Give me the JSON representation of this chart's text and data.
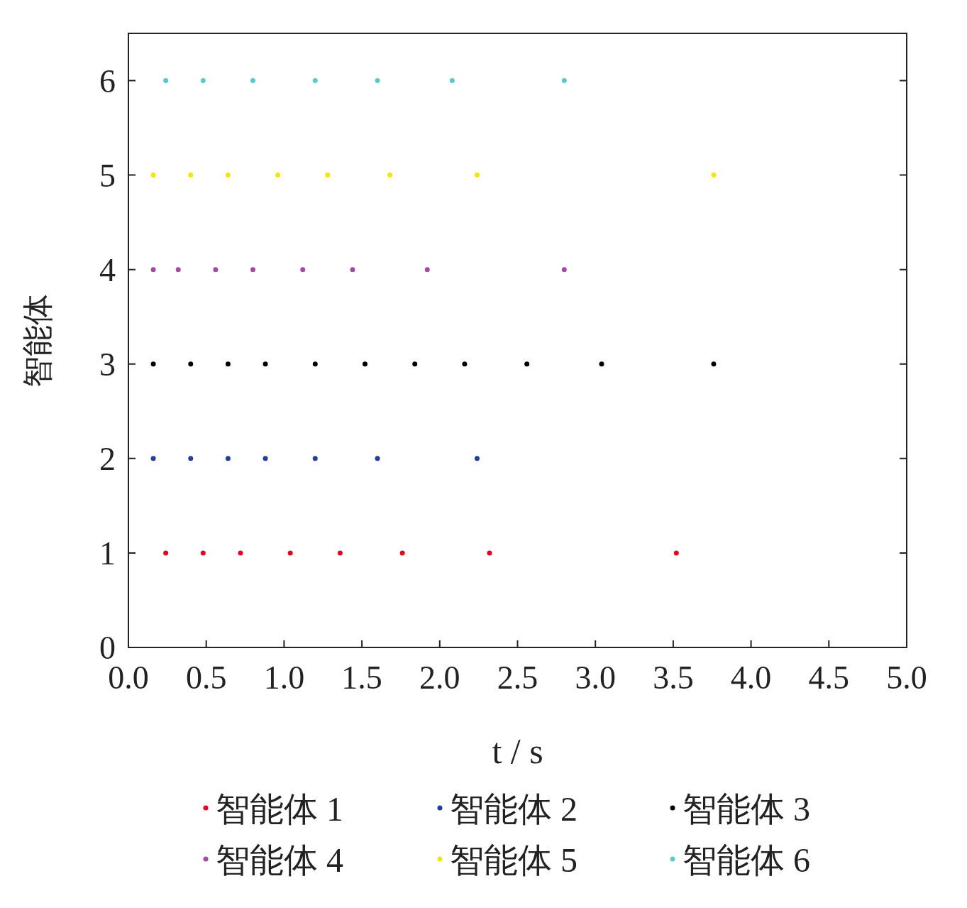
{
  "chart_data": {
    "type": "scatter",
    "xlabel": "t / s",
    "ylabel": "智能体",
    "xlim": [
      0,
      5
    ],
    "ylim": [
      0,
      6.5
    ],
    "xticks": [
      {
        "value": 0,
        "label": "0.0"
      },
      0.5,
      {
        "value": 1,
        "label": "1.0"
      },
      1.5,
      {
        "value": 2,
        "label": "2.0"
      },
      2.5,
      {
        "value": 3,
        "label": "3.0"
      },
      3.5,
      {
        "value": 4,
        "label": "4.0"
      },
      4.5,
      {
        "value": 5,
        "label": "5.0"
      }
    ],
    "yticks": [
      0,
      1,
      2,
      3,
      4,
      5,
      6
    ],
    "legend": "bottom",
    "marker": "circle",
    "grid": false,
    "series": [
      {
        "name": "智能体 1",
        "color": "#e8001c",
        "x": [
          0.24,
          0.48,
          0.72,
          1.04,
          1.36,
          1.76,
          2.32,
          3.52
        ],
        "values": [
          1,
          1,
          1,
          1,
          1,
          1,
          1,
          1
        ]
      },
      {
        "name": "智能体 2",
        "color": "#1f3f9a",
        "x": [
          0.16,
          0.4,
          0.64,
          0.88,
          1.2,
          1.6,
          2.24
        ],
        "values": [
          2,
          2,
          2,
          2,
          2,
          2,
          2
        ]
      },
      {
        "name": "智能体 3",
        "color": "#000000",
        "x": [
          0.16,
          0.4,
          0.64,
          0.88,
          1.2,
          1.52,
          1.84,
          2.16,
          2.56,
          3.04,
          3.76
        ],
        "values": [
          3,
          3,
          3,
          3,
          3,
          3,
          3,
          3,
          3,
          3,
          3
        ]
      },
      {
        "name": "智能体 4",
        "color": "#a04ca0",
        "x": [
          0.16,
          0.32,
          0.56,
          0.8,
          1.12,
          1.44,
          1.92,
          2.8
        ],
        "values": [
          4,
          4,
          4,
          4,
          4,
          4,
          4,
          4
        ]
      },
      {
        "name": "智能体 5",
        "color": "#f0e800",
        "x": [
          0.16,
          0.4,
          0.64,
          0.96,
          1.28,
          1.68,
          2.24,
          3.76
        ],
        "values": [
          5,
          5,
          5,
          5,
          5,
          5,
          5,
          5
        ]
      },
      {
        "name": "智能体 6",
        "color": "#5bc8d0",
        "x": [
          0.24,
          0.48,
          0.8,
          1.2,
          1.6,
          2.08,
          2.8
        ],
        "values": [
          6,
          6,
          6,
          6,
          6,
          6,
          6
        ]
      }
    ]
  }
}
